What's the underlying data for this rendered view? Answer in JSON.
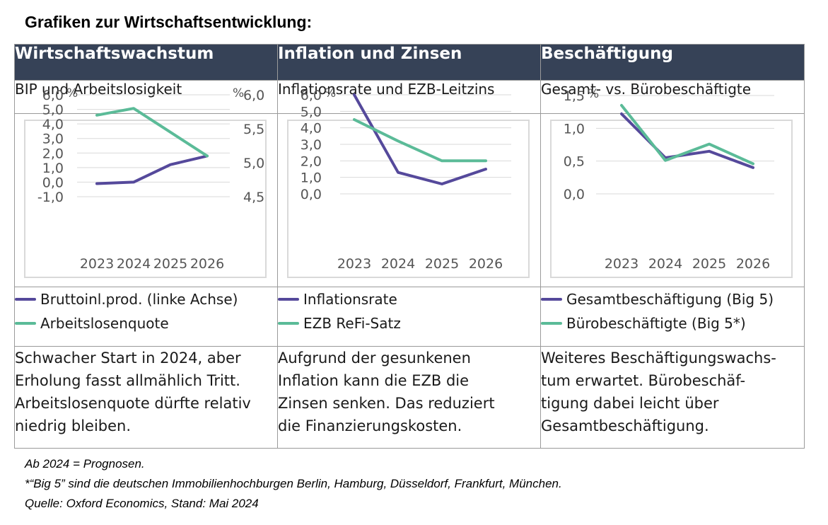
{
  "page": {
    "title": "Grafiken zur Wirtschaftsentwicklung:"
  },
  "colors": {
    "header_bg": "#364257",
    "series_purple": "#55499b",
    "series_green": "#5bbb98",
    "grid": "#d9d9d9"
  },
  "columns": [
    {
      "header": "Wirtschaftswachstum",
      "subtitle": "BIP und Arbeitslosigkeit",
      "legend": [
        "Bruttoinl.prod. (linke Achse)",
        "Arbeitslosenquote"
      ],
      "description": [
        "Schwacher Start in 2024, aber",
        "Erholung fasst allmählich Tritt.",
        "Arbeitslosenquote dürfte relativ",
        "niedrig bleiben."
      ]
    },
    {
      "header": "Inflation und Zinsen",
      "subtitle": "Inflationsrate und EZB-Leitzins",
      "legend": [
        "Inflationsrate",
        "EZB ReFi-Satz"
      ],
      "description": [
        "Aufgrund der gesunkenen",
        "Inflation kann die EZB die",
        "Zinsen senken. Das reduziert",
        "die Finanzierungskosten."
      ]
    },
    {
      "header": "Beschäftigung",
      "subtitle": "Gesamt- vs. Bürobeschäftigte",
      "legend": [
        "Gesamtbeschäftigung (Big 5)",
        "Bürobeschäftigte (Big 5*)"
      ],
      "description": [
        "Weiteres Beschäftigungswachs-",
        "tum erwartet. Bürobeschäf-",
        "tigung dabei leicht über",
        "Gesamtbeschäftigung."
      ]
    }
  ],
  "footnotes": [
    "Ab 2024 = Prognosen.",
    "*“Big 5” sind die deutschen Immobilienhochburgen Berlin, Hamburg, Düsseldorf, Frankfurt, München.",
    "Quelle: Oxford Economics, Stand: Mai 2024"
  ],
  "chart_data": [
    {
      "type": "line",
      "x": [
        "2023",
        "2024",
        "2025",
        "2026"
      ],
      "y_unit": "%",
      "y2_unit": "%",
      "ylim": [
        -1.0,
        6.0
      ],
      "yticks": [
        "6,0",
        "5,0",
        "4,0",
        "3,0",
        "2,0",
        "1,0",
        "0,0",
        "-1,0"
      ],
      "y2lim": [
        4.5,
        6.0
      ],
      "y2ticks": [
        "6,0",
        "5,5",
        "5,0",
        "4,5"
      ],
      "series": [
        {
          "name": "Bruttoinl.prod. (linke Achse)",
          "axis": "left",
          "color": "#55499b",
          "values": [
            -0.1,
            0.0,
            1.2,
            1.8
          ]
        },
        {
          "name": "Arbeitslosenquote",
          "axis": "right",
          "color": "#5bbb98",
          "values": [
            5.7,
            5.8,
            5.45,
            5.1
          ]
        }
      ]
    },
    {
      "type": "line",
      "x": [
        "2023",
        "2024",
        "2025",
        "2026"
      ],
      "y_unit": "%",
      "ylim": [
        0.0,
        6.0
      ],
      "yticks": [
        "6,0",
        "5,0",
        "4,0",
        "3,0",
        "2,0",
        "1,0",
        "0,0"
      ],
      "series": [
        {
          "name": "Inflationsrate",
          "color": "#55499b",
          "values": [
            6.0,
            1.3,
            0.6,
            1.5
          ]
        },
        {
          "name": "EZB ReFi-Satz",
          "color": "#5bbb98",
          "values": [
            4.5,
            3.2,
            2.0,
            2.0
          ]
        }
      ]
    },
    {
      "type": "line",
      "x": [
        "2023",
        "2024",
        "2025",
        "2026"
      ],
      "y_unit": "%",
      "ylim": [
        0.0,
        1.5
      ],
      "yticks": [
        "1,5",
        "1,0",
        "0,5",
        "0,0"
      ],
      "series": [
        {
          "name": "Gesamtbeschäftigung (Big 5)",
          "color": "#55499b",
          "values": [
            1.22,
            0.55,
            0.65,
            0.4
          ]
        },
        {
          "name": "Bürobeschäftigte (Big 5*)",
          "color": "#5bbb98",
          "values": [
            1.35,
            0.51,
            0.76,
            0.46
          ]
        }
      ]
    }
  ]
}
